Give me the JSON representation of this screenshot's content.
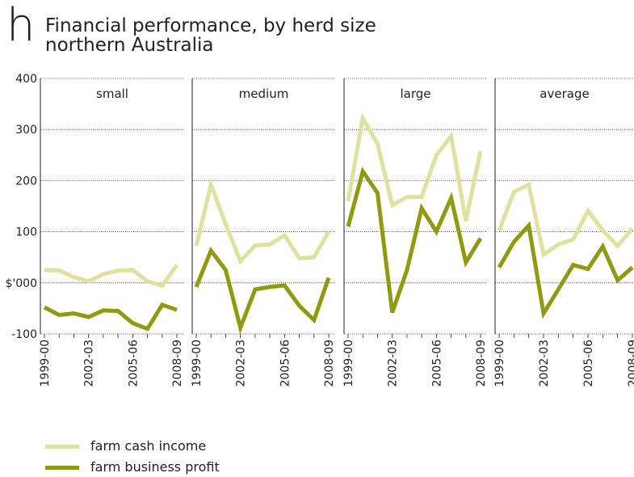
{
  "header": {
    "panel_letter": "h",
    "title": "Financial performance, by herd size",
    "subtitle": "northern Australia"
  },
  "legend": [
    {
      "label": "farm cash income",
      "color": "#dfe29f"
    },
    {
      "label": "farm business profit",
      "color": "#8f9a10"
    }
  ],
  "chart_data": {
    "type": "line",
    "ylabel": "$'000",
    "ylim": [
      -100,
      400
    ],
    "y_ticks": [
      400,
      300,
      200,
      100,
      "$'000",
      -100
    ],
    "y_tick_values": [
      400,
      300,
      200,
      100,
      0,
      -100
    ],
    "x": [
      "1999-00",
      "2000-01",
      "2001-02",
      "2002-03",
      "2003-04",
      "2004-05",
      "2005-06",
      "2006-07",
      "2007-08",
      "2008-09"
    ],
    "x_tick_labels": [
      "1999-00",
      "2002-03",
      "2005-06",
      "2008-09"
    ],
    "grid": "horizontal dotted",
    "legend_position": "bottom-left",
    "panels": [
      {
        "name": "small",
        "series": [
          {
            "name": "farm cash income",
            "values": [
              25,
              24,
              11,
              3,
              17,
              24,
              25,
              3,
              -6,
              35
            ]
          },
          {
            "name": "farm business profit",
            "values": [
              -48,
              -63,
              -60,
              -67,
              -54,
              -55,
              -79,
              -90,
              -43,
              -53
            ]
          }
        ]
      },
      {
        "name": "medium",
        "series": [
          {
            "name": "farm cash income",
            "values": [
              72,
              192,
              115,
              42,
              73,
              75,
              93,
              48,
              50,
              100
            ]
          },
          {
            "name": "farm business profit",
            "values": [
              -8,
              63,
              25,
              -88,
              -13,
              -8,
              -5,
              -45,
              -73,
              10
            ]
          }
        ]
      },
      {
        "name": "large",
        "series": [
          {
            "name": "farm cash income",
            "values": [
              160,
              322,
              272,
              152,
              168,
              168,
              250,
              287,
              121,
              258
            ]
          },
          {
            "name": "farm business profit",
            "values": [
              110,
              218,
              176,
              -58,
              25,
              146,
              100,
              166,
              40,
              87
            ]
          }
        ]
      },
      {
        "name": "average",
        "series": [
          {
            "name": "farm cash income",
            "values": [
              102,
              178,
              192,
              55,
              75,
              85,
              141,
              103,
              72,
              106
            ]
          },
          {
            "name": "farm business profit",
            "values": [
              30,
              80,
              112,
              -60,
              -13,
              35,
              27,
              71,
              5,
              30
            ]
          }
        ]
      }
    ]
  }
}
